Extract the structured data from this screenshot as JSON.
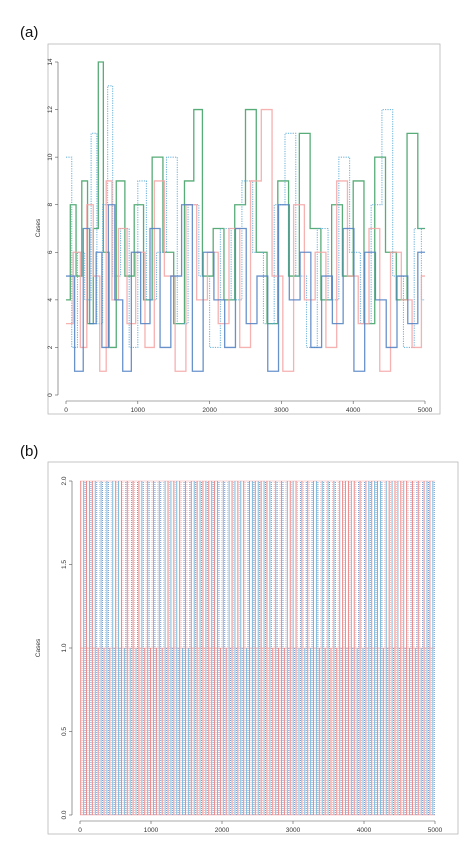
{
  "chart_data": [
    {
      "panel": "(a)",
      "type": "line",
      "ylabel": "Cases",
      "xlabel": "",
      "xlim": [
        0,
        5000
      ],
      "ylim": [
        0,
        14
      ],
      "x_ticks": [
        "0",
        "1000",
        "2000",
        "3000",
        "4000",
        "5000"
      ],
      "y_ticks": [
        "0",
        "2",
        "4",
        "6",
        "8",
        "10",
        "12",
        "14"
      ],
      "grid": false,
      "series": [
        {
          "color": "#3a9e5f",
          "style": "solid",
          "x": [
            0,
            60,
            140,
            220,
            300,
            380,
            450,
            520,
            600,
            700,
            820,
            950,
            1080,
            1200,
            1350,
            1500,
            1650,
            1780,
            1900,
            2050,
            2200,
            2350,
            2500,
            2650,
            2800,
            2950,
            3100,
            3250,
            3400,
            3550,
            3700,
            3850,
            4000,
            4150,
            4300,
            4450,
            4600,
            4750,
            4900
          ],
          "values": [
            4,
            8,
            5,
            9,
            3,
            7,
            14,
            6,
            2,
            9,
            5,
            8,
            4,
            10,
            6,
            3,
            9,
            12,
            5,
            7,
            4,
            8,
            12,
            6,
            3,
            9,
            5,
            11,
            7,
            4,
            8,
            5,
            9,
            3,
            10,
            6,
            4,
            11,
            7
          ]
        },
        {
          "color": "#5aa9d6",
          "style": "dotted",
          "x": [
            0,
            80,
            160,
            260,
            350,
            430,
            510,
            580,
            650,
            760,
            880,
            1000,
            1120,
            1260,
            1400,
            1550,
            1700,
            1850,
            2000,
            2150,
            2300,
            2450,
            2600,
            2750,
            2900,
            3050,
            3200,
            3350,
            3500,
            3650,
            3800,
            3950,
            4100,
            4250,
            4400,
            4550,
            4700,
            4850,
            4950
          ],
          "values": [
            10,
            2,
            6,
            4,
            11,
            3,
            8,
            13,
            5,
            7,
            2,
            9,
            4,
            6,
            10,
            3,
            8,
            5,
            2,
            7,
            4,
            9,
            6,
            3,
            8,
            11,
            5,
            2,
            7,
            4,
            10,
            6,
            3,
            8,
            12,
            5,
            2,
            7,
            4
          ]
        },
        {
          "color": "#f4a3a3",
          "style": "solid",
          "x": [
            0,
            100,
            200,
            290,
            380,
            470,
            560,
            640,
            730,
            850,
            970,
            1100,
            1230,
            1370,
            1520,
            1670,
            1820,
            1970,
            2120,
            2270,
            2420,
            2570,
            2720,
            2870,
            3020,
            3170,
            3320,
            3470,
            3620,
            3770,
            3920,
            4070,
            4220,
            4370,
            4520,
            4670,
            4820,
            4950
          ],
          "values": [
            3,
            6,
            2,
            8,
            5,
            1,
            9,
            4,
            7,
            3,
            6,
            2,
            9,
            5,
            1,
            8,
            4,
            6,
            3,
            7,
            2,
            9,
            12,
            5,
            1,
            8,
            4,
            6,
            2,
            9,
            5,
            3,
            7,
            1,
            6,
            4,
            2,
            5
          ]
        },
        {
          "color": "#4f7fc2",
          "style": "solid",
          "x": [
            0,
            120,
            240,
            330,
            420,
            500,
            590,
            680,
            790,
            910,
            1040,
            1170,
            1310,
            1460,
            1610,
            1760,
            1910,
            2060,
            2210,
            2360,
            2510,
            2660,
            2810,
            2960,
            3110,
            3260,
            3410,
            3560,
            3710,
            3860,
            4010,
            4160,
            4310,
            4460,
            4610,
            4760,
            4900
          ],
          "values": [
            5,
            1,
            7,
            3,
            6,
            2,
            8,
            4,
            1,
            6,
            3,
            7,
            2,
            5,
            8,
            1,
            6,
            4,
            2,
            7,
            3,
            5,
            1,
            8,
            4,
            6,
            2,
            5,
            3,
            7,
            1,
            6,
            4,
            2,
            5,
            3,
            6
          ]
        }
      ]
    },
    {
      "panel": "(b)",
      "type": "line",
      "ylabel": "Cases",
      "xlabel": "",
      "xlim": [
        0,
        5000
      ],
      "ylim": [
        0,
        2
      ],
      "x_ticks": [
        "0",
        "1000",
        "2000",
        "3000",
        "4000",
        "5000"
      ],
      "y_ticks": [
        "0.0",
        "0.5",
        "1.0",
        "1.5",
        "2.0"
      ],
      "grid": false,
      "series": [
        {
          "color": "#e86a6a",
          "style": "solid"
        },
        {
          "color": "#f4a3a3",
          "style": "dotted"
        },
        {
          "color": "#5aa9d6",
          "style": "solid"
        },
        {
          "color": "#4f7fc2",
          "style": "dotted"
        }
      ],
      "values": [
        2,
        1,
        0,
        2,
        0,
        1,
        2,
        0,
        2,
        1,
        0,
        2,
        1,
        0,
        2,
        0,
        1,
        2,
        0,
        2,
        1,
        2,
        0,
        1,
        2,
        0,
        2,
        1,
        0,
        2,
        1,
        0,
        2,
        0,
        1,
        2,
        0,
        2,
        1,
        0,
        2,
        1,
        2,
        0,
        1,
        2,
        0,
        2,
        1,
        0,
        2,
        0,
        1,
        2,
        0,
        2,
        1,
        0,
        2,
        1,
        0,
        2,
        0,
        1,
        2,
        0,
        2,
        1,
        2,
        0,
        1,
        2,
        0,
        2,
        1,
        0,
        2,
        1,
        0,
        2,
        0,
        1,
        2,
        0,
        2,
        1,
        0,
        2,
        0,
        1,
        2,
        0,
        2,
        1,
        2,
        0,
        1,
        2,
        0,
        2,
        1,
        0,
        2,
        1,
        0,
        2,
        0,
        1,
        2,
        0,
        2,
        1,
        0,
        2,
        1,
        2,
        0,
        1,
        2,
        0,
        2,
        1,
        0,
        2,
        0,
        1,
        2,
        0,
        2,
        1,
        0,
        2,
        1,
        0,
        2,
        0,
        1,
        2,
        0,
        2,
        1,
        2,
        0,
        1,
        2,
        0,
        2,
        1,
        0,
        2,
        1,
        0,
        2,
        0,
        1,
        2,
        0,
        2,
        1,
        0,
        2,
        1,
        2,
        0,
        1,
        2,
        0,
        2,
        1,
        0,
        2,
        0,
        1,
        2,
        0,
        2,
        1,
        0,
        2,
        1,
        0,
        2,
        0,
        1,
        2,
        0,
        2,
        1,
        2,
        0,
        1,
        2,
        0,
        2,
        1,
        0,
        2,
        1,
        0,
        2,
        0,
        1,
        2,
        0,
        2,
        1,
        0,
        2,
        1,
        2,
        0,
        1,
        2,
        0,
        2,
        1,
        0,
        2,
        0,
        1,
        2,
        0,
        2,
        1,
        0,
        2,
        1,
        0,
        2,
        0,
        1,
        2,
        0,
        2,
        1,
        2,
        0,
        1,
        2,
        0,
        2,
        1,
        0,
        2
      ]
    }
  ]
}
